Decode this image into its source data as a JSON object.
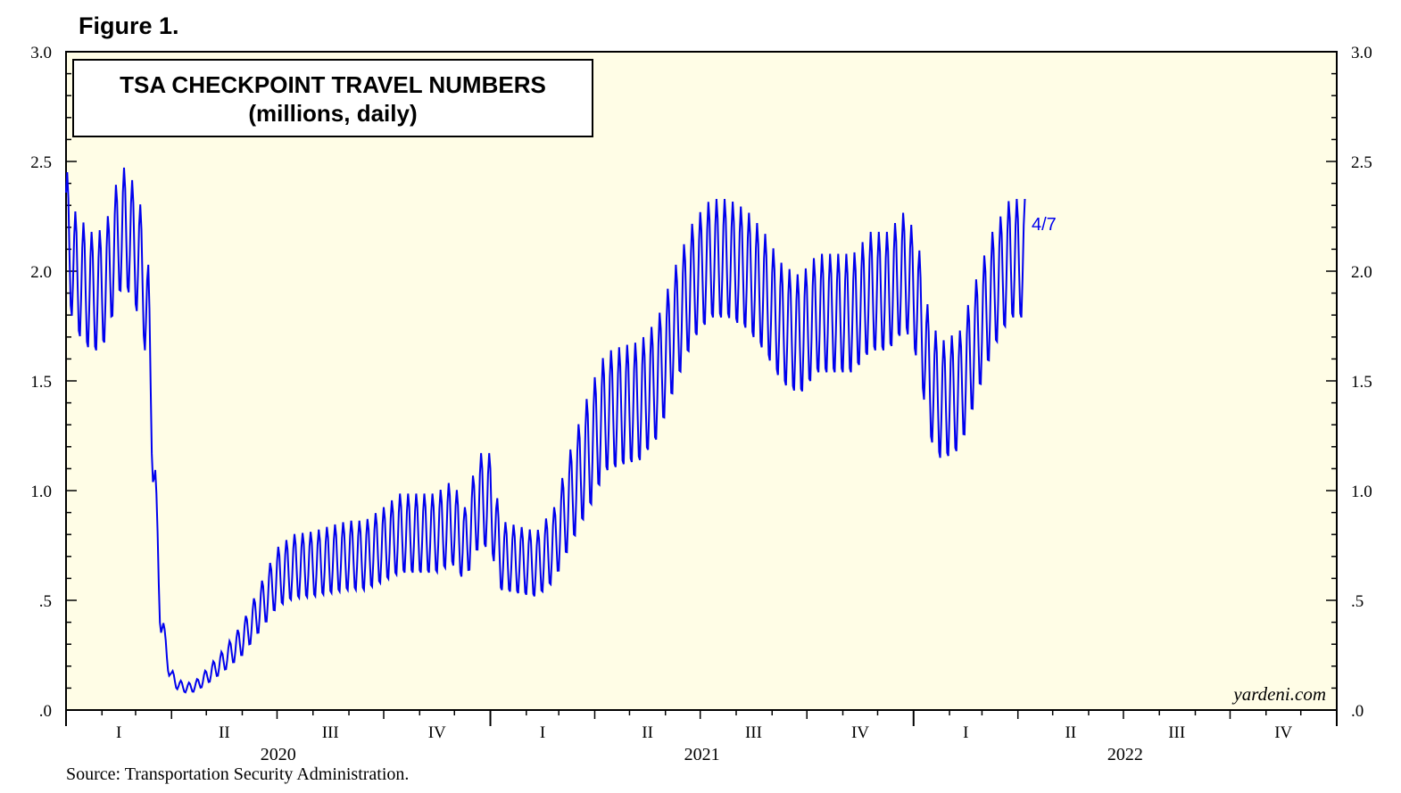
{
  "figure_label": "Figure 1.",
  "source_note": "Source: Transportation Security Administration.",
  "watermark": "yardeni.com",
  "colors": {
    "line": "#0000ee",
    "plot_background": "#fffde6",
    "axis": "#000000"
  },
  "chart_data": {
    "type": "line",
    "title": "TSA CHECKPOINT TRAVEL NUMBERS",
    "subtitle": "(millions, daily)",
    "ylim": [
      0,
      3.0
    ],
    "y_ticks": [
      {
        "value": 0,
        "label": ".0"
      },
      {
        "value": 0.5,
        "label": ".5"
      },
      {
        "value": 1.0,
        "label": "1.0"
      },
      {
        "value": 1.5,
        "label": "1.5"
      },
      {
        "value": 2.0,
        "label": "2.0"
      },
      {
        "value": 2.5,
        "label": "2.5"
      },
      {
        "value": 3.0,
        "label": "3.0"
      }
    ],
    "x_range": [
      "2020-01-01",
      "2023-01-01"
    ],
    "years": [
      "2020",
      "2021",
      "2022"
    ],
    "quarter_labels": [
      "I",
      "II",
      "III",
      "IV"
    ],
    "grid": false,
    "end_label": "4/7",
    "series": [
      {
        "points": [
          [
            "2020-01-01",
            2.2
          ],
          [
            "2020-01-08",
            2.0
          ],
          [
            "2020-01-15",
            1.95
          ],
          [
            "2020-01-22",
            1.9
          ],
          [
            "2020-01-29",
            1.9
          ],
          [
            "2020-02-05",
            1.95
          ],
          [
            "2020-02-12",
            2.1
          ],
          [
            "2020-02-19",
            2.2
          ],
          [
            "2020-02-26",
            2.15
          ],
          [
            "2020-03-04",
            2.05
          ],
          [
            "2020-03-08",
            1.95
          ],
          [
            "2020-03-12",
            1.75
          ],
          [
            "2020-03-16",
            1.3
          ],
          [
            "2020-03-19",
            0.8
          ],
          [
            "2020-03-22",
            0.5
          ],
          [
            "2020-03-26",
            0.3
          ],
          [
            "2020-04-01",
            0.15
          ],
          [
            "2020-04-08",
            0.11
          ],
          [
            "2020-04-15",
            0.1
          ],
          [
            "2020-04-22",
            0.11
          ],
          [
            "2020-05-01",
            0.15
          ],
          [
            "2020-05-15",
            0.22
          ],
          [
            "2020-06-01",
            0.32
          ],
          [
            "2020-06-15",
            0.45
          ],
          [
            "2020-07-01",
            0.6
          ],
          [
            "2020-07-15",
            0.65
          ],
          [
            "2020-08-01",
            0.66
          ],
          [
            "2020-08-15",
            0.68
          ],
          [
            "2020-09-01",
            0.7
          ],
          [
            "2020-09-15",
            0.7
          ],
          [
            "2020-10-01",
            0.75
          ],
          [
            "2020-10-15",
            0.8
          ],
          [
            "2020-11-01",
            0.8
          ],
          [
            "2020-11-15",
            0.8
          ],
          [
            "2020-11-29",
            0.85
          ],
          [
            "2020-12-10",
            0.75
          ],
          [
            "2020-12-22",
            0.95
          ],
          [
            "2021-01-01",
            0.95
          ],
          [
            "2021-01-10",
            0.7
          ],
          [
            "2021-01-25",
            0.68
          ],
          [
            "2021-02-10",
            0.66
          ],
          [
            "2021-02-25",
            0.75
          ],
          [
            "2021-03-10",
            0.95
          ],
          [
            "2021-03-25",
            1.15
          ],
          [
            "2021-04-10",
            1.35
          ],
          [
            "2021-04-25",
            1.38
          ],
          [
            "2021-05-10",
            1.4
          ],
          [
            "2021-05-25",
            1.5
          ],
          [
            "2021-06-10",
            1.75
          ],
          [
            "2021-06-25",
            1.95
          ],
          [
            "2021-07-10",
            2.05
          ],
          [
            "2021-07-25",
            2.05
          ],
          [
            "2021-08-10",
            2.0
          ],
          [
            "2021-08-25",
            1.9
          ],
          [
            "2021-09-10",
            1.75
          ],
          [
            "2021-09-25",
            1.7
          ],
          [
            "2021-10-10",
            1.8
          ],
          [
            "2021-10-25",
            1.8
          ],
          [
            "2021-11-10",
            1.8
          ],
          [
            "2021-11-25",
            1.9
          ],
          [
            "2021-12-10",
            1.9
          ],
          [
            "2021-12-25",
            2.0
          ],
          [
            "2022-01-05",
            1.85
          ],
          [
            "2022-01-15",
            1.5
          ],
          [
            "2022-01-25",
            1.4
          ],
          [
            "2022-02-10",
            1.45
          ],
          [
            "2022-02-25",
            1.7
          ],
          [
            "2022-03-10",
            1.9
          ],
          [
            "2022-03-25",
            2.05
          ],
          [
            "2022-04-07",
            2.05
          ]
        ],
        "weekly_amplitude": 0.28
      }
    ]
  }
}
